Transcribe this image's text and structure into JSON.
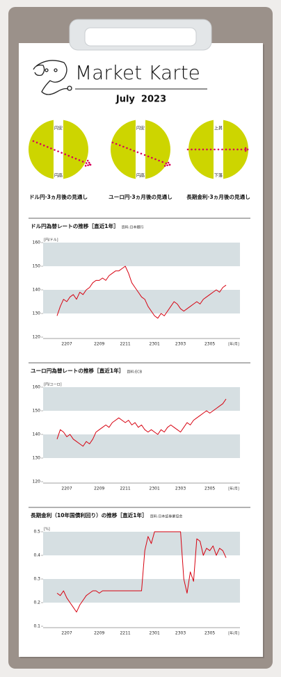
{
  "header": {
    "title": "Market Karte",
    "date": "July  2023"
  },
  "forecasts": [
    {
      "top": "円安",
      "bottom": "円高",
      "caption": "ドル円·3ヵ月後の見通し"
    },
    {
      "top": "円安",
      "bottom": "円高",
      "caption": "ユーロ円·3ヵ月後の見通し"
    },
    {
      "top": "上昇",
      "bottom": "下落",
      "caption": "長期金利·3ヵ月後の見通し"
    }
  ],
  "chart_data": [
    {
      "type": "line",
      "title": "ドル円為替レートの推移［直近1年］",
      "source": "資料:日本銀行",
      "y_unit": "[円/ドル]",
      "x_unit": "[年/月]",
      "categories": [
        null,
        null,
        null,
        "2207",
        null,
        null,
        null,
        null,
        null,
        null,
        null,
        null,
        null,
        "2209",
        null,
        null,
        null,
        null,
        null,
        null,
        null,
        "2211",
        null,
        null,
        null,
        null,
        null,
        null,
        null,
        null,
        "2301",
        null,
        null,
        null,
        null,
        null,
        null,
        null,
        "2303",
        null,
        null,
        null,
        null,
        null,
        null,
        null,
        null,
        "2305",
        null,
        null,
        null,
        null,
        null
      ],
      "series": [
        {
          "name": "ドル円",
          "color": "#d7000f",
          "values": [
            129,
            133,
            136,
            135,
            137,
            138,
            136,
            139,
            138,
            140,
            141,
            143,
            144,
            144,
            145,
            144,
            146,
            147,
            148,
            148,
            149,
            150,
            147,
            143,
            141,
            139,
            137,
            136,
            133,
            131,
            129,
            128,
            130,
            129,
            131,
            133,
            135,
            134,
            132,
            131,
            132,
            133,
            134,
            135,
            134,
            136,
            137,
            138,
            139,
            140,
            139,
            141,
            142
          ]
        }
      ],
      "ylim": [
        120,
        160
      ],
      "yticks": [
        120,
        130,
        140,
        150,
        160
      ],
      "bands": true
    },
    {
      "type": "line",
      "title": "ユーロ円為替レートの推移［直近1年］",
      "source": "資料:ECB",
      "y_unit": "[円/ユーロ]",
      "x_unit": "[年/月]",
      "categories": [
        null,
        null,
        null,
        "2207",
        null,
        null,
        null,
        null,
        null,
        null,
        null,
        null,
        null,
        "2209",
        null,
        null,
        null,
        null,
        null,
        null,
        null,
        "2211",
        null,
        null,
        null,
        null,
        null,
        null,
        null,
        null,
        "2301",
        null,
        null,
        null,
        null,
        null,
        null,
        null,
        "2303",
        null,
        null,
        null,
        null,
        null,
        null,
        null,
        null,
        "2305",
        null,
        null,
        null,
        null,
        null
      ],
      "series": [
        {
          "name": "ユーロ円",
          "color": "#d7000f",
          "values": [
            138,
            142,
            141,
            139,
            140,
            138,
            137,
            136,
            135,
            137,
            136,
            138,
            141,
            142,
            143,
            144,
            143,
            145,
            146,
            147,
            146,
            145,
            146,
            144,
            145,
            143,
            144,
            142,
            141,
            142,
            141,
            140,
            142,
            141,
            143,
            144,
            143,
            142,
            141,
            143,
            145,
            144,
            146,
            147,
            148,
            149,
            150,
            149,
            150,
            151,
            152,
            153,
            155
          ]
        }
      ],
      "ylim": [
        120,
        160
      ],
      "yticks": [
        120,
        130,
        140,
        150,
        160
      ],
      "bands": true
    },
    {
      "type": "line",
      "title": "長期金利（10年国債利回り）の推移［直近1年］",
      "source": "資料:日本証券業協会",
      "y_unit": "[%]",
      "x_unit": "[年/月]",
      "categories": [
        null,
        null,
        null,
        "2207",
        null,
        null,
        null,
        null,
        null,
        null,
        null,
        null,
        null,
        "2209",
        null,
        null,
        null,
        null,
        null,
        null,
        null,
        "2211",
        null,
        null,
        null,
        null,
        null,
        null,
        null,
        null,
        "2301",
        null,
        null,
        null,
        null,
        null,
        null,
        null,
        "2303",
        null,
        null,
        null,
        null,
        null,
        null,
        null,
        null,
        "2305",
        null,
        null,
        null,
        null,
        null
      ],
      "series": [
        {
          "name": "長期金利",
          "color": "#d7000f",
          "values": [
            0.24,
            0.23,
            0.25,
            0.22,
            0.2,
            0.18,
            0.16,
            0.19,
            0.21,
            0.23,
            0.24,
            0.25,
            0.25,
            0.24,
            0.25,
            0.25,
            0.25,
            0.25,
            0.25,
            0.25,
            0.25,
            0.25,
            0.25,
            0.25,
            0.25,
            0.25,
            0.25,
            0.42,
            0.48,
            0.45,
            0.5,
            0.5,
            0.5,
            0.5,
            0.5,
            0.5,
            0.5,
            0.5,
            0.5,
            0.3,
            0.24,
            0.33,
            0.29,
            0.47,
            0.46,
            0.4,
            0.43,
            0.42,
            0.44,
            0.4,
            0.43,
            0.42,
            0.39
          ]
        }
      ],
      "ylim": [
        0.1,
        0.5
      ],
      "yticks": [
        0.1,
        0.2,
        0.3,
        0.4,
        0.5
      ],
      "bands": true
    }
  ]
}
